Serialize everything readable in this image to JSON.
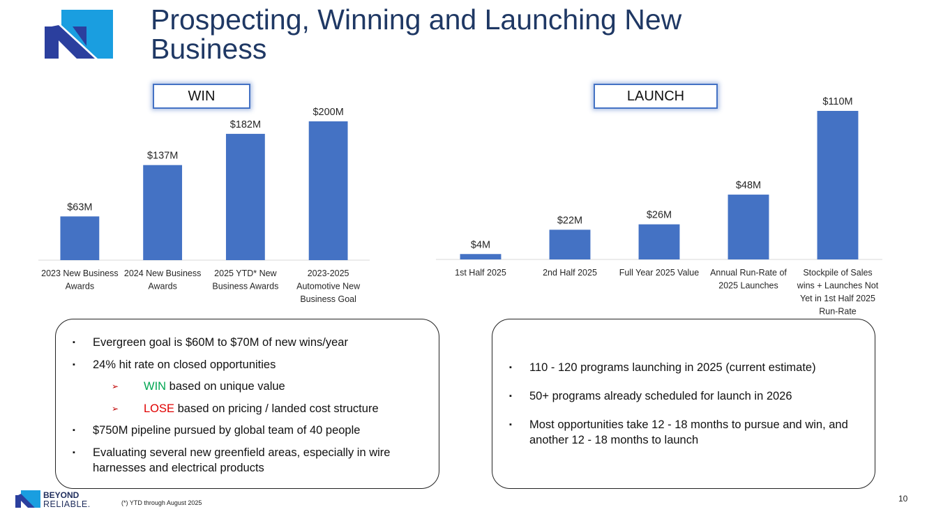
{
  "header": {
    "title": "Prospecting, Winning and Launching New Business",
    "logo_icon": "company-logo-icon"
  },
  "colors": {
    "bar": "#4472c4",
    "title": "#1f3864",
    "win_keyword": "#00a651",
    "lose_keyword": "#e00000"
  },
  "win_section": {
    "label": "WIN",
    "panel_bullets": {
      "b1": "Evergreen goal is $60M to $70M  of new wins/year",
      "b2": "24% hit rate on closed opportunities",
      "sub1_keyword": "WIN",
      "sub1_text": " based on unique value",
      "sub2_keyword": "LOSE",
      "sub2_text": " based on pricing / landed cost structure",
      "b3": "$750M pipeline pursued by global team of 40 people",
      "b4": "Evaluating several new greenfield areas, especially in wire harnesses and electrical products"
    }
  },
  "launch_section": {
    "label": "LAUNCH",
    "panel_bullets": [
      "110 - 120 programs launching in 2025 (current estimate)",
      "50+ programs already scheduled for launch in 2026",
      "Most opportunities take 12 - 18 months to pursue and win, and another 12 - 18 months to launch"
    ]
  },
  "chart_data": [
    {
      "type": "bar",
      "title": "WIN",
      "categories": [
        [
          "2023 New Business",
          "Awards"
        ],
        [
          "2024 New Business",
          "Awards"
        ],
        [
          "2025 YTD* New",
          "Business Awards"
        ],
        [
          "2023-2025",
          "Automotive New",
          "Business Goal"
        ]
      ],
      "values": [
        63,
        137,
        182,
        200
      ],
      "data_labels": [
        "$63M",
        "$137M",
        "$182M",
        "$200M"
      ],
      "unit": "$M",
      "ylim": [
        0,
        200
      ]
    },
    {
      "type": "bar",
      "title": "LAUNCH",
      "categories": [
        [
          "1st Half 2025"
        ],
        [
          "2nd Half 2025"
        ],
        [
          "Full Year 2025 Value"
        ],
        [
          "Annual Run-Rate of",
          "2025 Launches"
        ],
        [
          "Stockpile of Sales",
          "wins + Launches Not",
          "Yet in 1st Half 2025",
          "Run-Rate"
        ]
      ],
      "values": [
        4,
        22,
        26,
        48,
        110
      ],
      "data_labels": [
        "$4M",
        "$22M",
        "$26M",
        "$48M",
        "$110M"
      ],
      "unit": "$M",
      "ylim": [
        0,
        110
      ]
    }
  ],
  "footer": {
    "brand_line1": "BEYOND",
    "brand_line2": "RELIABLE.",
    "footnote": "(*) YTD through August 2025",
    "page_number": "10"
  }
}
